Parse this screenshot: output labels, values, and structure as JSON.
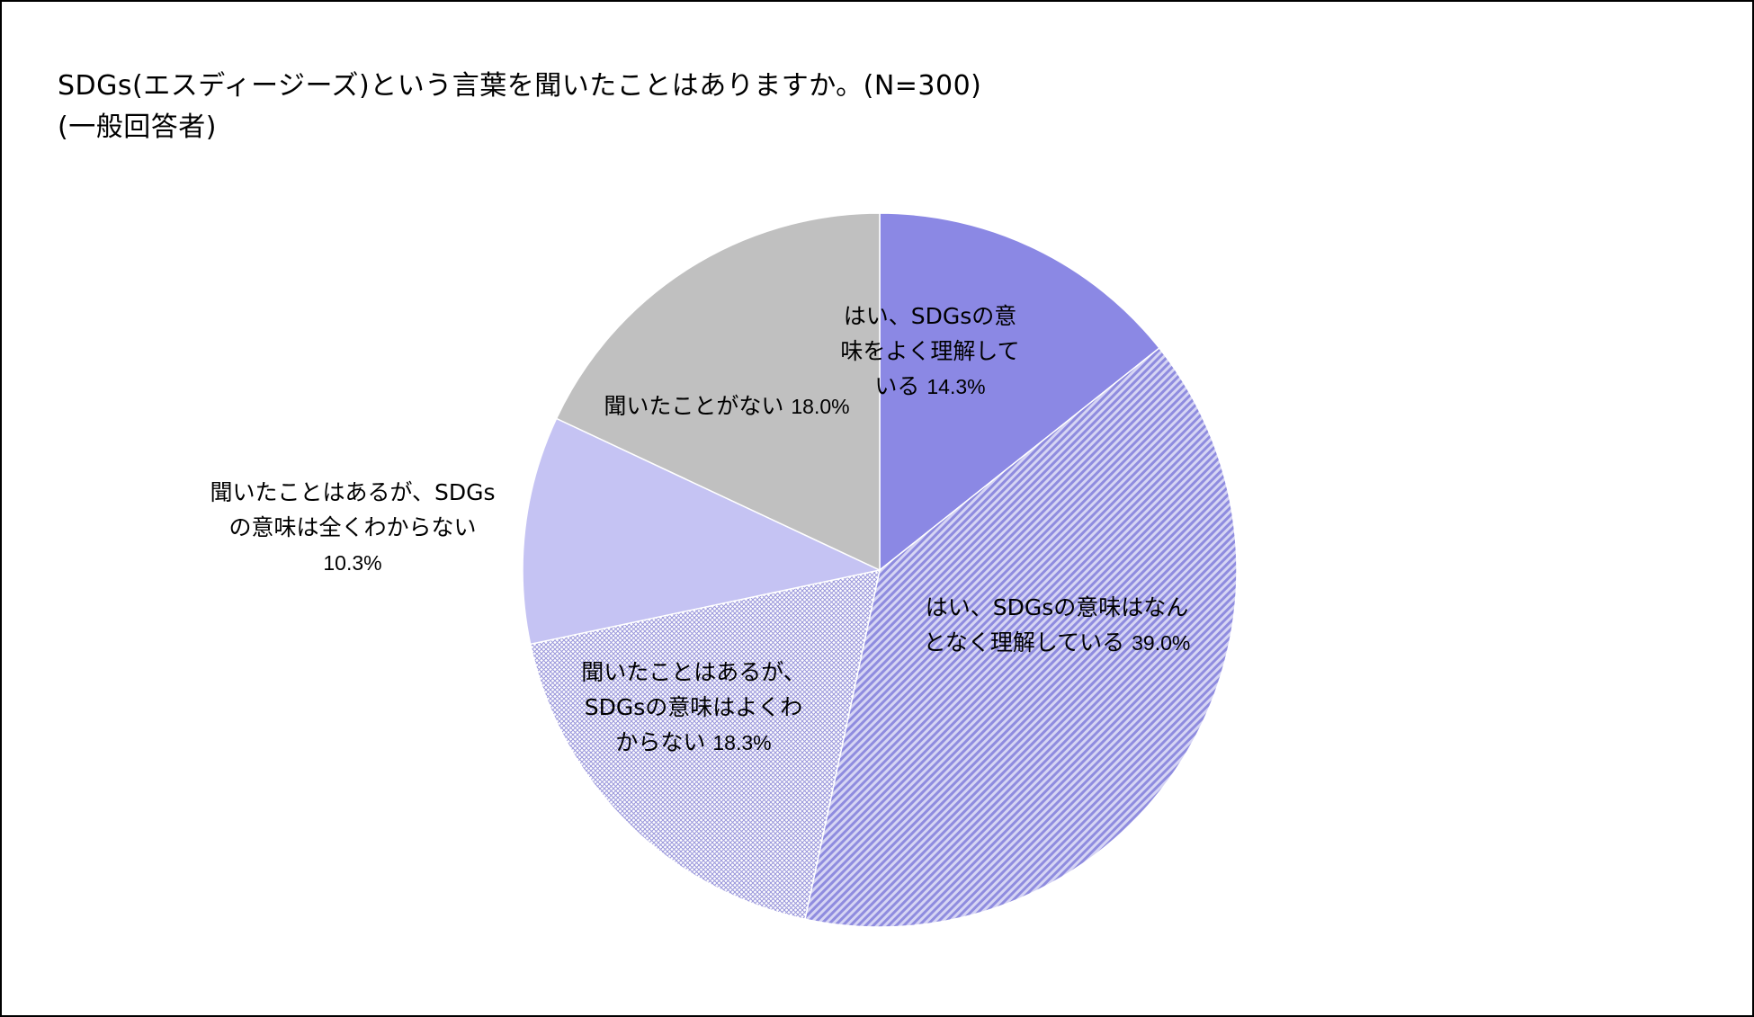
{
  "title_lines": [
    "SDGs(エスディージーズ)という言葉を聞いたことはありますか。(N=300)",
    "(一般回答者)"
  ],
  "chart_data": {
    "type": "pie",
    "title": "SDGs(エスディージーズ)という言葉を聞いたことはありますか。(N=300)",
    "subtitle": "(一般回答者)",
    "start_angle_deg": 0,
    "direction": "clockwise",
    "slices": [
      {
        "label_lines": [
          "はい、SDGsの意",
          "味をよく理解して",
          "いる"
        ],
        "value": 14.3,
        "value_label": "14.3%",
        "color": "#8b88e4",
        "fill": "solid"
      },
      {
        "label_lines": [
          "はい、SDGsの意味はなん",
          "となく理解している"
        ],
        "value": 39.0,
        "value_label": "39.0%",
        "color": "#8f8cdf",
        "fill": "diagonal-hatch"
      },
      {
        "label_lines": [
          "聞いたことはあるが、",
          "SDGsの意味はよくわ",
          "からない"
        ],
        "value": 18.3,
        "value_label": "18.3%",
        "color": "#9a97db",
        "fill": "crosshatch"
      },
      {
        "label_lines": [
          "聞いたことはあるが、SDGs",
          "の意味は全くわからない"
        ],
        "value": 10.3,
        "value_label": "10.3%",
        "color": "#c5c3f3",
        "fill": "solid"
      },
      {
        "label_lines": [
          "聞いたことがない"
        ],
        "value": 18.0,
        "value_label": "18.0%",
        "color": "#c0c0c0",
        "fill": "solid"
      }
    ]
  }
}
